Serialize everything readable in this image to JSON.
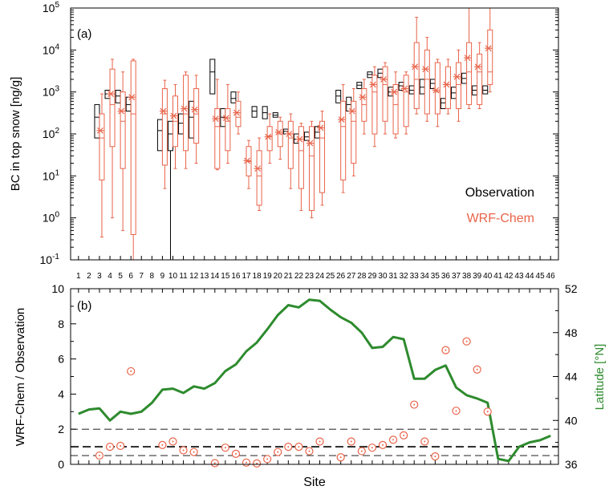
{
  "chart_data": [
    {
      "type": "box",
      "panel_label": "(a)",
      "ylabel": "BC in top snow [ng/g]",
      "yscale": "log",
      "ylim": [
        0.1,
        100000
      ],
      "y_ticks": [
        {
          "value": 0.1,
          "base": "10",
          "exp": "-1"
        },
        {
          "value": 1,
          "base": "10",
          "exp": "0"
        },
        {
          "value": 10,
          "base": "10",
          "exp": "1"
        },
        {
          "value": 100,
          "base": "10",
          "exp": "2"
        },
        {
          "value": 1000,
          "base": "10",
          "exp": "3"
        },
        {
          "value": 10000,
          "base": "10",
          "exp": "4"
        },
        {
          "value": 100000,
          "base": "10",
          "exp": "5"
        }
      ],
      "x_ticks": [
        "1",
        "2",
        "3",
        "4",
        "5",
        "6",
        "7",
        "8",
        "9",
        "10",
        "11",
        "12",
        "13",
        "14",
        "15",
        "16",
        "17",
        "18",
        "19",
        "20",
        "21",
        "22",
        "23",
        "24",
        "25",
        "26",
        "27",
        "28",
        "29",
        "30",
        "31",
        "32",
        "33",
        "34",
        "35",
        "36",
        "37",
        "38",
        "39",
        "40",
        "41",
        "42",
        "43",
        "44",
        "45",
        "46"
      ],
      "legend": [
        {
          "label": "Observation",
          "color": "#000000"
        },
        {
          "label": "WRF-Chem",
          "color": "#e8644a"
        }
      ],
      "series": [
        {
          "name": "Observation",
          "color": "#000000",
          "boxes": [
            {
              "site": 3,
              "q1": 80,
              "q3": 500,
              "median": 250
            },
            {
              "site": 4,
              "q1": 700,
              "q3": 1100,
              "median": 900
            },
            {
              "site": 5,
              "q1": 550,
              "q3": 1100,
              "median": 800
            },
            {
              "site": 6,
              "q1": 350,
              "q3": 750,
              "median": 500
            },
            {
              "site": 9,
              "q1": 40,
              "q3": 220,
              "median": 120
            },
            {
              "site": 10,
              "q1": 40,
              "q3": 200,
              "median": 100,
              "whisker_low": 0.1,
              "whisker_high": 200
            },
            {
              "site": 11,
              "q1": 100,
              "q3": 300,
              "median": 180
            },
            {
              "site": 12,
              "q1": 80,
              "q3": 600,
              "median": 250
            },
            {
              "site": 14,
              "q1": 900,
              "q3": 6000,
              "median": 3000
            },
            {
              "site": 15,
              "q1": 150,
              "q3": 400,
              "median": 250
            },
            {
              "site": 16,
              "q1": 550,
              "q3": 1000,
              "median": 700
            },
            {
              "site": 18,
              "q1": 250,
              "q3": 450,
              "median": 350
            },
            {
              "site": 19,
              "q1": 230,
              "q3": 450,
              "median": 320
            },
            {
              "site": 20,
              "q1": 250,
              "q3": 320,
              "median": 280
            },
            {
              "site": 21,
              "q1": 100,
              "q3": 130,
              "median": 115
            },
            {
              "site": 22,
              "q1": 60,
              "q3": 100,
              "median": 75
            },
            {
              "site": 23,
              "q1": 70,
              "q3": 110,
              "median": 85
            },
            {
              "site": 24,
              "q1": 80,
              "q3": 150,
              "median": 110
            },
            {
              "site": 26,
              "q1": 550,
              "q3": 1100,
              "median": 800
            },
            {
              "site": 27,
              "q1": 350,
              "q3": 750,
              "median": 500
            },
            {
              "site": 28,
              "q1": 1200,
              "q3": 1700,
              "median": 1450
            },
            {
              "site": 29,
              "q1": 2200,
              "q3": 3000,
              "median": 2600
            },
            {
              "site": 30,
              "q1": 2200,
              "q3": 3500,
              "median": 2800
            },
            {
              "site": 31,
              "q1": 800,
              "q3": 1300,
              "median": 1000
            },
            {
              "site": 32,
              "q1": 1100,
              "q3": 1700,
              "median": 1400
            },
            {
              "site": 33,
              "q1": 900,
              "q3": 1400,
              "median": 1100
            },
            {
              "site": 34,
              "q1": 900,
              "q3": 2000,
              "median": 1300
            },
            {
              "site": 35,
              "q1": 1200,
              "q3": 2000,
              "median": 1600
            },
            {
              "site": 36,
              "q1": 400,
              "q3": 700,
              "median": 550
            },
            {
              "site": 37,
              "q1": 700,
              "q3": 1300,
              "median": 950
            },
            {
              "site": 38,
              "q1": 1600,
              "q3": 2800,
              "median": 2100
            },
            {
              "site": 39,
              "q1": 850,
              "q3": 1400,
              "median": 1100
            },
            {
              "site": 40,
              "q1": 900,
              "q3": 1400,
              "median": 1100
            }
          ]
        },
        {
          "name": "WRF-Chem",
          "color": "#e8644a",
          "boxes": [
            {
              "site": 3,
              "low": 0.35,
              "q1": 8,
              "median": 80,
              "q3": 300,
              "high": 900,
              "mean": 120
            },
            {
              "site": 4,
              "low": 1,
              "q1": 50,
              "median": 500,
              "q3": 3500,
              "high": 6000,
              "mean": 900
            },
            {
              "site": 5,
              "low": 0.5,
              "q1": 15,
              "median": 200,
              "q3": 1000,
              "high": 3000,
              "mean": 350
            },
            {
              "site": 6,
              "low": 0.1,
              "q1": 0.4,
              "median": 300,
              "q3": 5500,
              "high": 6000,
              "mean": 750
            },
            {
              "site": 9,
              "low": 5,
              "q1": 18,
              "median": 300,
              "q3": 1200,
              "high": 1900,
              "mean": 350
            },
            {
              "site": 10,
              "low": 15,
              "q1": 50,
              "median": 200,
              "q3": 800,
              "high": 1500,
              "mean": 270
            },
            {
              "site": 11,
              "low": 15,
              "q1": 40,
              "median": 300,
              "q3": 2500,
              "high": 3000,
              "mean": 400
            },
            {
              "site": 12,
              "low": 20,
              "q1": 60,
              "median": 300,
              "q3": 1200,
              "high": 2500,
              "mean": 380
            },
            {
              "site": 14,
              "low": 14,
              "q1": 15,
              "median": 150,
              "q3": 400,
              "high": 2000,
              "mean": 230
            },
            {
              "site": 15,
              "low": 20,
              "q1": 40,
              "median": 200,
              "q3": 400,
              "high": 1500,
              "mean": 240
            },
            {
              "site": 16,
              "low": 100,
              "q1": 150,
              "median": 250,
              "q3": 600,
              "high": 1000,
              "mean": 320
            },
            {
              "site": 17,
              "low": 5,
              "q1": 10,
              "median": 22,
              "q3": 50,
              "high": 70,
              "mean": 23
            },
            {
              "site": 18,
              "low": 1.5,
              "q1": 2,
              "median": 10,
              "q3": 40,
              "high": 80,
              "mean": 15
            },
            {
              "site": 19,
              "low": 20,
              "q1": 40,
              "median": 90,
              "q3": 150,
              "high": 300,
              "mean": 85
            },
            {
              "site": 20,
              "low": 25,
              "q1": 50,
              "median": 100,
              "q3": 200,
              "high": 250,
              "mean": 110
            },
            {
              "site": 21,
              "low": 5,
              "q1": 15,
              "median": 80,
              "q3": 200,
              "high": 300,
              "mean": 100
            },
            {
              "site": 22,
              "low": 1.5,
              "q1": 5,
              "median": 40,
              "q3": 150,
              "high": 180,
              "mean": 75
            },
            {
              "site": 23,
              "low": 1,
              "q1": 1.5,
              "median": 30,
              "q3": 150,
              "high": 200,
              "mean": 60
            },
            {
              "site": 24,
              "low": 2,
              "q1": 4,
              "median": 80,
              "q3": 200,
              "high": 350,
              "mean": 140
            },
            {
              "site": 26,
              "low": 4,
              "q1": 8,
              "median": 150,
              "q3": 600,
              "high": 1500,
              "mean": 220
            },
            {
              "site": 27,
              "low": 10,
              "q1": 20,
              "median": 200,
              "q3": 600,
              "high": 1200,
              "mean": 350
            },
            {
              "site": 28,
              "low": 100,
              "q1": 200,
              "median": 500,
              "q3": 1200,
              "high": 2000,
              "mean": 750
            },
            {
              "site": 29,
              "low": 50,
              "q1": 100,
              "median": 1000,
              "q3": 2500,
              "high": 4000,
              "mean": 1500
            },
            {
              "site": 30,
              "low": 100,
              "q1": 200,
              "median": 1500,
              "q3": 4000,
              "high": 5000,
              "mean": 2000
            },
            {
              "site": 31,
              "low": 80,
              "q1": 100,
              "median": 500,
              "q3": 1500,
              "high": 3000,
              "mean": 1000
            },
            {
              "site": 32,
              "low": 100,
              "q1": 150,
              "median": 1000,
              "q3": 2500,
              "high": 3000,
              "mean": 1200
            },
            {
              "site": 33,
              "low": 300,
              "q1": 400,
              "median": 2000,
              "q3": 15000,
              "high": 60000,
              "mean": 4000
            },
            {
              "site": 34,
              "low": 200,
              "q1": 300,
              "median": 2000,
              "q3": 10000,
              "high": 20000,
              "mean": 3500
            },
            {
              "site": 35,
              "low": 150,
              "q1": 300,
              "median": 1000,
              "q3": 5000,
              "high": 6000,
              "mean": 1100
            },
            {
              "site": 36,
              "low": 300,
              "q1": 400,
              "median": 1500,
              "q3": 4000,
              "high": 6000,
              "mean": 1500
            },
            {
              "site": 37,
              "low": 200,
              "q1": 400,
              "median": 1500,
              "q3": 5000,
              "high": 10000,
              "mean": 2300
            },
            {
              "site": 38,
              "low": 400,
              "q1": 500,
              "median": 3000,
              "q3": 15000,
              "high": 100000,
              "mean": 6500
            },
            {
              "site": 39,
              "low": 400,
              "q1": 500,
              "median": 3000,
              "q3": 8000,
              "high": 15000,
              "mean": 4000
            },
            {
              "site": 40,
              "low": 1000,
              "q1": 1500,
              "median": 3000,
              "q3": 30000,
              "high": 100000,
              "mean": 11000
            }
          ]
        }
      ]
    },
    {
      "type": "line",
      "panel_label": "(b)",
      "xlabel": "Site",
      "ylabel": "WRF-Chem / Observation",
      "ylim": [
        0,
        10
      ],
      "y_ticks": [
        "0",
        "2",
        "4",
        "6",
        "8",
        "10"
      ],
      "y2label": "Latitude [°N]",
      "y2lim": [
        36,
        52
      ],
      "y2_ticks": [
        "36",
        "40",
        "44",
        "48",
        "52"
      ],
      "reference_lines": [
        {
          "y": 0.5,
          "style": "dashed"
        },
        {
          "y": 1,
          "style": "dashed",
          "bold": true
        },
        {
          "y": 2,
          "style": "dashed"
        }
      ],
      "series": [
        {
          "name": "Latitude",
          "axis": "right",
          "color": "#2e8b2e",
          "x": [
            1,
            2,
            3,
            4,
            5,
            6,
            7,
            8,
            9,
            10,
            11,
            12,
            13,
            14,
            15,
            16,
            17,
            18,
            19,
            20,
            21,
            22,
            23,
            24,
            25,
            26,
            27,
            28,
            29,
            30,
            31,
            32,
            33,
            34,
            35,
            36,
            37,
            38,
            39,
            40,
            41,
            42,
            43,
            44,
            45,
            46
          ],
          "y": [
            40.6,
            41.0,
            41.1,
            40.0,
            40.8,
            40.6,
            40.8,
            41.6,
            42.8,
            42.9,
            42.5,
            43.1,
            42.9,
            43.4,
            44.5,
            45.1,
            46.3,
            47.1,
            48.3,
            49.6,
            50.5,
            50.3,
            51.0,
            50.9,
            50.1,
            49.4,
            48.9,
            48.0,
            46.6,
            46.7,
            47.6,
            47.4,
            43.8,
            43.8,
            44.6,
            45.0,
            43.0,
            42.3,
            42.0,
            41.6,
            36.5,
            36.3,
            37.6,
            38.0,
            38.2,
            38.6
          ]
        },
        {
          "name": "Ratio",
          "axis": "left",
          "color": "#e8644a",
          "marker": "circle-dot",
          "x": [
            3,
            4,
            5,
            6,
            9,
            10,
            11,
            12,
            14,
            15,
            16,
            17,
            18,
            19,
            20,
            21,
            22,
            23,
            24,
            26,
            27,
            28,
            29,
            30,
            31,
            32,
            33,
            34,
            35,
            36,
            37,
            38,
            39,
            40
          ],
          "y": [
            0.5,
            1.0,
            1.05,
            5.3,
            1.1,
            1.3,
            0.8,
            0.7,
            0.07,
            0.95,
            0.6,
            0.1,
            0.05,
            0.3,
            0.7,
            1.0,
            1.0,
            0.75,
            1.3,
            0.4,
            1.3,
            0.75,
            0.95,
            1.1,
            1.4,
            1.65,
            3.4,
            1.3,
            0.45,
            6.5,
            3.05,
            7.0,
            5.4,
            3.0
          ]
        }
      ]
    }
  ]
}
